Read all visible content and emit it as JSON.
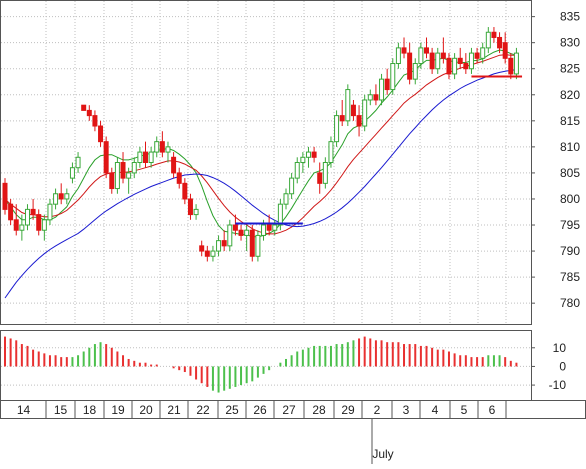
{
  "colors": {
    "up": "#3aa83a",
    "down": "#e01515",
    "ma_blue": "#1a1ad0",
    "ma_red": "#d01818",
    "ma_green": "#2aa02a",
    "support_blue": "#1a1ad0",
    "support_red": "#e01515",
    "osc_up": "#4cc04c",
    "osc_down": "#e83030",
    "grid": "#bfbfbf"
  },
  "chart_data": [
    {
      "type": "candlestick",
      "title": "",
      "y_ticks": [
        780,
        785,
        790,
        795,
        800,
        805,
        810,
        815,
        820,
        825,
        830,
        835
      ],
      "ylim": [
        776,
        838
      ],
      "grid": true,
      "date_labels": [
        "14",
        "15",
        "18",
        "19",
        "20",
        "21",
        "22",
        "25",
        "26",
        "27",
        "28",
        "29",
        "2",
        "3",
        "4",
        "5",
        "6"
      ],
      "month_label": "July",
      "candles": [
        {
          "o": 803,
          "h": 804,
          "l": 797,
          "c": 798
        },
        {
          "o": 799,
          "h": 800,
          "l": 795,
          "c": 796
        },
        {
          "o": 796,
          "h": 799,
          "l": 793,
          "c": 794
        },
        {
          "o": 794,
          "h": 797,
          "l": 792,
          "c": 795
        },
        {
          "o": 795,
          "h": 799,
          "l": 794,
          "c": 798
        },
        {
          "o": 798,
          "h": 800,
          "l": 796,
          "c": 797
        },
        {
          "o": 797,
          "h": 798,
          "l": 793,
          "c": 794
        },
        {
          "o": 794,
          "h": 797,
          "l": 792,
          "c": 796
        },
        {
          "o": 796,
          "h": 800,
          "l": 795,
          "c": 799
        },
        {
          "o": 799,
          "h": 802,
          "l": 798,
          "c": 801
        },
        {
          "o": 801,
          "h": 803,
          "l": 799,
          "c": 800
        },
        {
          "o": 800,
          "h": 802,
          "l": 799,
          "c": 801
        },
        {
          "o": 804,
          "h": 807,
          "l": 803,
          "c": 806
        },
        {
          "o": 806,
          "h": 809,
          "l": 805,
          "c": 808
        },
        {
          "o": 818,
          "h": 818,
          "l": 817,
          "c": 817
        },
        {
          "o": 817,
          "h": 818,
          "l": 815,
          "c": 816
        },
        {
          "o": 816,
          "h": 817,
          "l": 813,
          "c": 814
        },
        {
          "o": 814,
          "h": 815,
          "l": 810,
          "c": 811
        },
        {
          "o": 811,
          "h": 812,
          "l": 804,
          "c": 805
        },
        {
          "o": 805,
          "h": 806,
          "l": 801,
          "c": 802
        },
        {
          "o": 802,
          "h": 808,
          "l": 801,
          "c": 807
        },
        {
          "o": 807,
          "h": 809,
          "l": 803,
          "c": 804
        },
        {
          "o": 804,
          "h": 806,
          "l": 801,
          "c": 805
        },
        {
          "o": 805,
          "h": 808,
          "l": 804,
          "c": 807
        },
        {
          "o": 807,
          "h": 810,
          "l": 806,
          "c": 809
        },
        {
          "o": 809,
          "h": 811,
          "l": 806,
          "c": 807
        },
        {
          "o": 807,
          "h": 810,
          "l": 806,
          "c": 809
        },
        {
          "o": 809,
          "h": 812,
          "l": 808,
          "c": 811
        },
        {
          "o": 811,
          "h": 813,
          "l": 808,
          "c": 809
        },
        {
          "o": 809,
          "h": 811,
          "l": 807,
          "c": 810
        },
        {
          "o": 808,
          "h": 809,
          "l": 804,
          "c": 805
        },
        {
          "o": 805,
          "h": 806,
          "l": 802,
          "c": 803
        },
        {
          "o": 803,
          "h": 804,
          "l": 799,
          "c": 800
        },
        {
          "o": 800,
          "h": 801,
          "l": 796,
          "c": 797
        },
        {
          "o": 797,
          "h": 799,
          "l": 796,
          "c": 798
        },
        {
          "o": 791,
          "h": 792,
          "l": 789,
          "c": 790
        },
        {
          "o": 790,
          "h": 791,
          "l": 788,
          "c": 789
        },
        {
          "o": 789,
          "h": 791,
          "l": 788,
          "c": 790
        },
        {
          "o": 790,
          "h": 793,
          "l": 789,
          "c": 792
        },
        {
          "o": 792,
          "h": 794,
          "l": 790,
          "c": 791
        },
        {
          "o": 791,
          "h": 796,
          "l": 790,
          "c": 795
        },
        {
          "o": 795,
          "h": 797,
          "l": 793,
          "c": 794
        },
        {
          "o": 794,
          "h": 795,
          "l": 792,
          "c": 793
        },
        {
          "o": 793,
          "h": 795,
          "l": 790,
          "c": 794
        },
        {
          "o": 794,
          "h": 795,
          "l": 788,
          "c": 789
        },
        {
          "o": 789,
          "h": 794,
          "l": 788,
          "c": 793
        },
        {
          "o": 793,
          "h": 796,
          "l": 792,
          "c": 795
        },
        {
          "o": 795,
          "h": 797,
          "l": 793,
          "c": 794
        },
        {
          "o": 794,
          "h": 796,
          "l": 793,
          "c": 795
        },
        {
          "o": 795,
          "h": 800,
          "l": 794,
          "c": 799
        },
        {
          "o": 799,
          "h": 802,
          "l": 798,
          "c": 801
        },
        {
          "o": 801,
          "h": 805,
          "l": 800,
          "c": 804
        },
        {
          "o": 804,
          "h": 808,
          "l": 803,
          "c": 807
        },
        {
          "o": 807,
          "h": 809,
          "l": 805,
          "c": 808
        },
        {
          "o": 808,
          "h": 810,
          "l": 806,
          "c": 809
        },
        {
          "o": 809,
          "h": 810,
          "l": 807,
          "c": 808
        },
        {
          "o": 805,
          "h": 807,
          "l": 801,
          "c": 803
        },
        {
          "o": 803,
          "h": 808,
          "l": 802,
          "c": 807
        },
        {
          "o": 807,
          "h": 812,
          "l": 806,
          "c": 811
        },
        {
          "o": 811,
          "h": 817,
          "l": 810,
          "c": 816
        },
        {
          "o": 816,
          "h": 819,
          "l": 814,
          "c": 815
        },
        {
          "o": 815,
          "h": 822,
          "l": 814,
          "c": 821
        },
        {
          "o": 818,
          "h": 819,
          "l": 815,
          "c": 816
        },
        {
          "o": 816,
          "h": 818,
          "l": 812,
          "c": 814
        },
        {
          "o": 814,
          "h": 820,
          "l": 813,
          "c": 819
        },
        {
          "o": 819,
          "h": 821,
          "l": 818,
          "c": 820
        },
        {
          "o": 820,
          "h": 822,
          "l": 818,
          "c": 819
        },
        {
          "o": 819,
          "h": 824,
          "l": 818,
          "c": 823
        },
        {
          "o": 823,
          "h": 825,
          "l": 820,
          "c": 821
        },
        {
          "o": 821,
          "h": 827,
          "l": 820,
          "c": 826
        },
        {
          "o": 826,
          "h": 830,
          "l": 825,
          "c": 829
        },
        {
          "o": 829,
          "h": 831,
          "l": 827,
          "c": 828
        },
        {
          "o": 828,
          "h": 830,
          "l": 822,
          "c": 823
        },
        {
          "o": 823,
          "h": 827,
          "l": 822,
          "c": 826
        },
        {
          "o": 826,
          "h": 830,
          "l": 825,
          "c": 829
        },
        {
          "o": 829,
          "h": 831,
          "l": 827,
          "c": 828
        },
        {
          "o": 828,
          "h": 829,
          "l": 824,
          "c": 825
        },
        {
          "o": 825,
          "h": 829,
          "l": 824,
          "c": 828
        },
        {
          "o": 828,
          "h": 831,
          "l": 826,
          "c": 827
        },
        {
          "o": 827,
          "h": 828,
          "l": 823,
          "c": 824
        },
        {
          "o": 824,
          "h": 828,
          "l": 823,
          "c": 827
        },
        {
          "o": 827,
          "h": 829,
          "l": 825,
          "c": 826
        },
        {
          "o": 826,
          "h": 828,
          "l": 824,
          "c": 825
        },
        {
          "o": 825,
          "h": 829,
          "l": 824,
          "c": 828
        },
        {
          "o": 828,
          "h": 829,
          "l": 826,
          "c": 827
        },
        {
          "o": 827,
          "h": 830,
          "l": 826,
          "c": 829
        },
        {
          "o": 829,
          "h": 833,
          "l": 828,
          "c": 832
        },
        {
          "o": 832,
          "h": 833,
          "l": 830,
          "c": 831
        },
        {
          "o": 831,
          "h": 832,
          "l": 828,
          "c": 829
        },
        {
          "o": 830,
          "h": 832,
          "l": 826,
          "c": 827
        },
        {
          "o": 827,
          "h": 828,
          "l": 823,
          "c": 824
        },
        {
          "o": 824,
          "h": 829,
          "l": 823,
          "c": 828
        }
      ],
      "moving_averages": [
        {
          "color_key": "ma_green",
          "values": [
            800,
            798.5,
            797,
            796,
            796,
            796.5,
            796.5,
            796,
            796,
            796.5,
            797.5,
            798.5,
            800.5,
            802,
            804,
            806,
            807.5,
            808.3,
            808.5,
            808.5,
            808,
            807.5,
            807.5,
            807.8,
            808.2,
            808.5,
            808.8,
            809.3,
            809.5,
            809.7,
            809.3,
            808.6,
            807.7,
            806.5,
            805,
            802.5,
            799.5,
            796.8,
            794.9,
            793.8,
            793.6,
            793.4,
            793.2,
            793.1,
            792.8,
            792.7,
            793,
            793.4,
            794,
            795.2,
            796.6,
            798.2,
            800,
            801.8,
            803.5,
            805,
            805.4,
            805.9,
            807,
            808.7,
            810.4,
            812.5,
            813.6,
            814.1,
            814.9,
            815.9,
            817,
            818.4,
            819.6,
            820.9,
            822.4,
            823.8,
            824.2,
            824.8,
            825.8,
            826.6,
            826.6,
            826.8,
            827,
            826.6,
            826.3,
            826.2,
            826.2,
            826.5,
            826.6,
            826.9,
            827.6,
            828.2,
            828.6,
            828.4,
            827.9,
            827.6
          ]
        },
        {
          "color_key": "ma_red",
          "values": [
            800,
            799,
            798.2,
            797.4,
            797,
            797,
            796.8,
            796.6,
            796.6,
            796.8,
            797.2,
            797.8,
            798.8,
            799.8,
            801,
            802.3,
            803.4,
            804.3,
            804.8,
            805,
            805.1,
            805.1,
            805.2,
            805.4,
            805.7,
            806,
            806.3,
            806.7,
            807,
            807.3,
            807.3,
            807.1,
            806.7,
            806.1,
            805.5,
            804.4,
            803.1,
            801.6,
            800.1,
            798.7,
            797.5,
            796.5,
            795.7,
            795,
            794.3,
            793.8,
            793.5,
            793.3,
            793.3,
            793.6,
            794,
            794.6,
            795.4,
            796.4,
            797.5,
            798.6,
            799.5,
            800.5,
            801.7,
            803.1,
            804.6,
            806.2,
            807.6,
            808.8,
            810,
            811.2,
            812.4,
            813.6,
            814.8,
            816,
            817.2,
            818.4,
            819.3,
            820.1,
            821,
            821.9,
            822.6,
            823.3,
            823.9,
            824.3,
            824.7,
            825.1,
            825.4,
            825.8,
            826.1,
            826.4,
            826.8,
            827.2,
            827.6,
            827.7,
            827.6,
            827.6
          ]
        },
        {
          "color_key": "ma_blue",
          "values": [
            781,
            782.5,
            784,
            785.3,
            786.5,
            787.6,
            788.6,
            789.5,
            790.3,
            791,
            791.6,
            792.2,
            792.8,
            793.4,
            794.2,
            795.1,
            796,
            796.9,
            797.7,
            798.4,
            799.1,
            799.7,
            800.3,
            800.9,
            801.4,
            801.9,
            802.4,
            802.8,
            803.2,
            803.6,
            804,
            804.3,
            804.6,
            804.7,
            804.8,
            804.7,
            804.5,
            804.1,
            803.6,
            803,
            802.3,
            801.5,
            800.6,
            799.7,
            798.8,
            798,
            797.2,
            796.5,
            795.9,
            795.4,
            795,
            794.8,
            794.7,
            794.8,
            795,
            795.3,
            795.7,
            796.2,
            796.8,
            797.5,
            798.3,
            799.2,
            800.2,
            801.3,
            802.4,
            803.6,
            804.8,
            806,
            807.3,
            808.6,
            809.9,
            811.2,
            812.5,
            813.7,
            814.9,
            816,
            817.1,
            818.1,
            819,
            819.8,
            820.5,
            821.2,
            821.8,
            822.3,
            822.8,
            823.2,
            823.6,
            824,
            824.3,
            824.5,
            824.7,
            824.8
          ]
        }
      ],
      "support_lines": [
        {
          "color_key": "support_blue",
          "x_start": 41,
          "x_end": 53,
          "y": 795.3
        },
        {
          "color_key": "support_red",
          "x_start": 83,
          "x_end": 92,
          "y": 823.5
        }
      ]
    },
    {
      "type": "bar",
      "title": "",
      "y_ticks": [
        10,
        0,
        -10
      ],
      "ylim": [
        -18,
        19
      ],
      "values": [
        16,
        15,
        14,
        12,
        11,
        9,
        8,
        7,
        6,
        6,
        5,
        5,
        5,
        6,
        8,
        10,
        12,
        13,
        12,
        10,
        8,
        6,
        4,
        3,
        2,
        2,
        1,
        1,
        0,
        0,
        -1,
        -2,
        -3,
        -5,
        -7,
        -9,
        -11,
        -13,
        -14,
        -13,
        -12,
        -11,
        -10,
        -9,
        -8,
        -6,
        -4,
        -2,
        0,
        2,
        4,
        6,
        8,
        9,
        10,
        11,
        11,
        11,
        11,
        12,
        12,
        13,
        14,
        15,
        16,
        15,
        14,
        14,
        13,
        13,
        13,
        12,
        12,
        12,
        11,
        11,
        10,
        9,
        9,
        8,
        7,
        6,
        6,
        5,
        5,
        5,
        6,
        6,
        6,
        5,
        3,
        2
      ],
      "signs": [
        -1,
        -1,
        -1,
        -1,
        -1,
        -1,
        -1,
        -1,
        -1,
        -1,
        -1,
        -1,
        1,
        1,
        1,
        1,
        1,
        1,
        -1,
        -1,
        -1,
        -1,
        -1,
        -1,
        -1,
        -1,
        -1,
        -1,
        -1,
        -1,
        -1,
        -1,
        -1,
        -1,
        -1,
        -1,
        -1,
        1,
        1,
        1,
        1,
        1,
        1,
        1,
        1,
        1,
        1,
        1,
        1,
        1,
        1,
        1,
        1,
        1,
        1,
        1,
        1,
        1,
        1,
        1,
        1,
        1,
        1,
        -1,
        -1,
        -1,
        -1,
        -1,
        -1,
        -1,
        -1,
        -1,
        -1,
        -1,
        -1,
        -1,
        -1,
        -1,
        -1,
        -1,
        -1,
        -1,
        -1,
        -1,
        -1,
        -1,
        1,
        1,
        1,
        -1,
        -1,
        -1
      ]
    }
  ]
}
